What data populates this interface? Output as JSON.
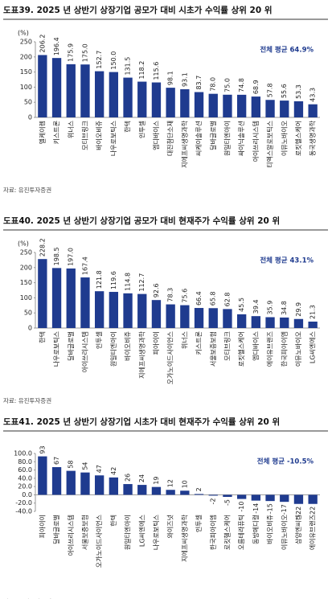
{
  "chart_data": [
    {
      "type": "bar",
      "title": "도표39.  2025 년 상반기 상장기업 공모가 대비 시초가 수익률 상위 20 위",
      "y_label": "(%)",
      "annotation": "전체 평균  64.9%",
      "source": "자료: 유진투자증권",
      "color": "#1f3b8f",
      "categories": [
        "엘케이켐",
        "키스트론",
        "위너스",
        "모티브링크",
        "바이오비쥬",
        "나우로보틱스",
        "한텍",
        "인투셀",
        "엠디바이스",
        "대진첨단소재",
        "지에프씨생명과학",
        "씨케이솔루션",
        "달바글로벌",
        "원일티엔아이",
        "싸이닉솔루션",
        "아이쓰리시스템",
        "티엑스알로보틱스",
        "이뮤노바이오",
        "로킷헬스케어",
        "동국생명과학"
      ],
      "values": [
        206.2,
        196.4,
        175.9,
        175.0,
        152.7,
        150.0,
        131.5,
        118.2,
        115.6,
        98.1,
        93.1,
        83.7,
        78.0,
        75.0,
        74.8,
        68.9,
        57.8,
        55.6,
        53.3,
        43.3
      ],
      "value_labels": [
        "206.2",
        "196.4",
        "175.9",
        "175.0",
        "152.7",
        "150.0",
        "131.5",
        "118.2",
        "115.6",
        "98.1",
        "93.1",
        "83.7",
        "78.0",
        "75.0",
        "74.8",
        "68.9",
        "57.8",
        "55.6",
        "53.3",
        "43.3"
      ],
      "ylim": [
        0,
        250
      ],
      "yticks": [
        0,
        50,
        100,
        150,
        200,
        250
      ]
    },
    {
      "type": "bar",
      "title": "도표40.  2025 년 상반기 상장기업 공모가 대비 현재주가 수익률 상위 20 위",
      "y_label": "(%)",
      "annotation": "전체 평균  43.1%",
      "source": "자료: 유진투자증권",
      "color": "#1f3b8f",
      "categories": [
        "한텍",
        "나우로보틱스",
        "달바글로벌",
        "아이쓰리시스템",
        "인투셀",
        "원일티엔아이",
        "바이오비쥬",
        "지에프씨생명과학",
        "피아이이",
        "오가노이드사이언스",
        "위너스",
        "키스트론",
        "서울보증보험",
        "모티브링크",
        "로킷헬스케어",
        "엠디바이스",
        "에이유브랜즈",
        "한국피아이엠",
        "이뮤노바이오",
        "LG씨엔에스"
      ],
      "values": [
        228.2,
        198.5,
        197.0,
        167.4,
        121.8,
        119.6,
        114.8,
        112.7,
        92.6,
        78.3,
        75.6,
        66.4,
        65.8,
        62.8,
        45.5,
        39.4,
        35.9,
        34.8,
        29.9,
        21.3
      ],
      "value_labels": [
        "228.2",
        "198.5",
        "197.0",
        "167.4",
        "121.8",
        "119.6",
        "114.8",
        "112.7",
        "92.6",
        "78.3",
        "75.6",
        "66.4",
        "65.8",
        "62.8",
        "45.5",
        "39.4",
        "35.9",
        "34.8",
        "29.9",
        "21.3"
      ],
      "ylim": [
        0,
        250
      ],
      "yticks": [
        0,
        50,
        100,
        150,
        200,
        250
      ]
    },
    {
      "type": "bar",
      "title": "도표41.  2025 년 상반기 상장기업 시초가 대비 현재주가 수익률 상위 20 위",
      "annotation": "전체 평균  -10.5%",
      "source": "자료: 유진투자증권",
      "color": "#1f3b8f",
      "categories": [
        "피아이이",
        "달바글로벌",
        "아이쓰리시스템",
        "서울보증보험",
        "오가노이드사이언스",
        "한텍",
        "원일티엔아이",
        "LG씨엔에스",
        "나우로보틱스",
        "와이즈넛",
        "지에프씨생명과학",
        "인투셀",
        "한국피아이엠",
        "로킷헬스케어",
        "오름테라퓨틱",
        "동방메디컬",
        "바이오비쥬",
        "이뮤노바이오",
        "삼양엔씨켐",
        "에이유브랜즈"
      ],
      "values": [
        93,
        67,
        58,
        54,
        47,
        42,
        26,
        24,
        19,
        12,
        10,
        2,
        -2,
        -5,
        -10,
        -14,
        -15,
        -17,
        -22,
        -22
      ],
      "ylim": [
        -40,
        100
      ],
      "yticks": [
        {
          "value": -40,
          "label": "-40.0"
        },
        {
          "value": -20,
          "label": "-20.0"
        },
        {
          "value": 0,
          "label": "0.0"
        },
        {
          "value": 20,
          "label": "20.0"
        },
        {
          "value": 40,
          "label": "40.0"
        },
        {
          "value": 60,
          "label": "60.0"
        },
        {
          "value": 80,
          "label": "80.0"
        },
        {
          "value": 100,
          "label": "100.0"
        }
      ]
    }
  ]
}
